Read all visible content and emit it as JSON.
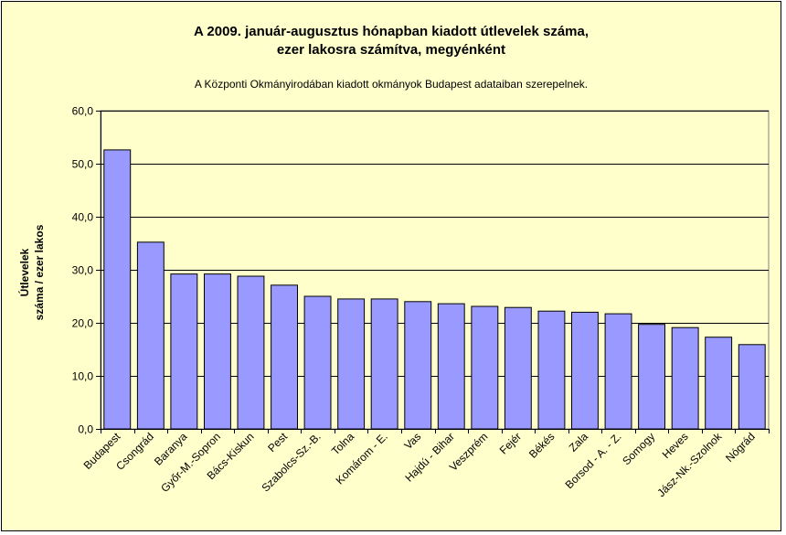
{
  "chart_data": {
    "type": "bar",
    "title": "A 2009. január-augusztus hónapban kiadott útlevelek száma,",
    "title_line2": "ezer lakosra számítva, megyénként",
    "subtitle": "A Központi Okmányirodában kiadott okmányok Budapest adataiban szerepelnek.",
    "ylabel_line1": "Útlevelek",
    "ylabel_line2": "száma / ezer lakos",
    "xlabel": "",
    "ylim": [
      0,
      60
    ],
    "yticks": [
      0,
      10,
      20,
      30,
      40,
      50,
      60
    ],
    "ytick_labels": [
      "0,0",
      "10,0",
      "20,0",
      "30,0",
      "40,0",
      "50,0",
      "60,0"
    ],
    "grid": true,
    "legend": "none",
    "categories": [
      "Budapest",
      "Csongrád",
      "Baranya",
      "Győr-M.-Sopron",
      "Bács-Kiskun",
      "Pest",
      "Szabolcs-Sz.-B.",
      "Tolna",
      "Komárom - E.",
      "Vas",
      "Hajdú - Bihar",
      "Veszprém",
      "Fejér",
      "Békés",
      "Zala",
      "Borsod - A. - Z.",
      "Somogy",
      "Heves",
      "Jász-Nk.-Szolnok",
      "Nógrád"
    ],
    "values": [
      52.6,
      35.2,
      29.2,
      29.2,
      28.8,
      27.1,
      25.0,
      24.5,
      24.5,
      24.0,
      23.6,
      23.1,
      22.9,
      22.2,
      22.0,
      21.7,
      19.7,
      19.1,
      17.3,
      15.9
    ],
    "colors": {
      "bar_fill": "#9999ff",
      "bar_stroke": "#000000",
      "plot_bg": "#ffffcc",
      "grid": "#000000"
    }
  }
}
